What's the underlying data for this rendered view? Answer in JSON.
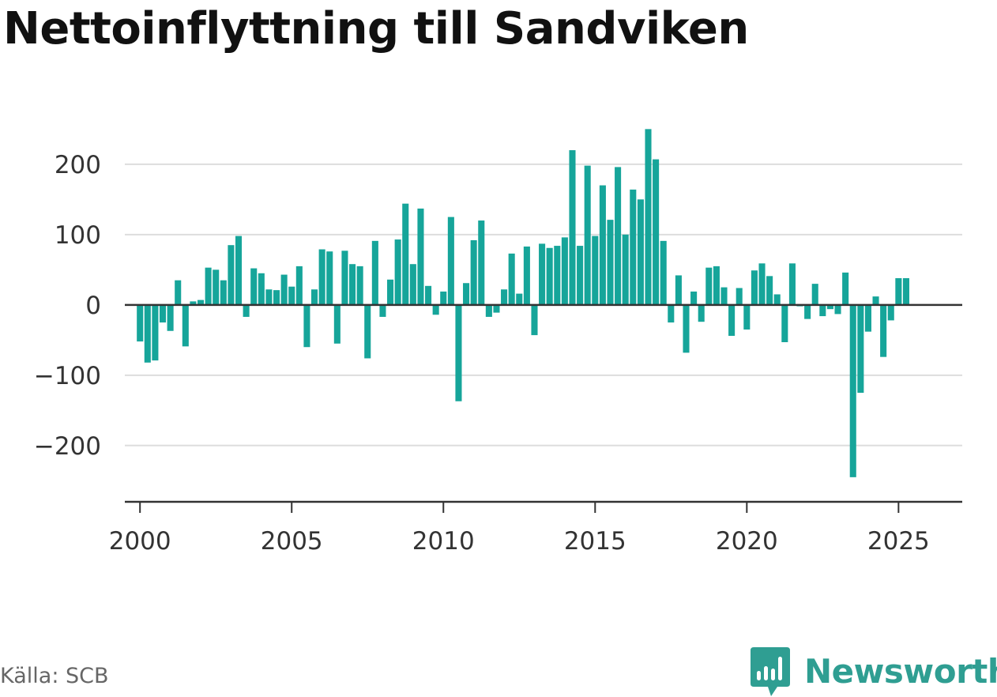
{
  "title": "Nettoinflyttning till Sandviken",
  "source": "Källa: SCB",
  "brand": {
    "name": "Newsworthy",
    "icon": "newsworthy-logo-icon",
    "color": "#2f9e92"
  },
  "colors": {
    "bar": "#16a59a",
    "grid": "#dddddd",
    "zero_line": "#333333",
    "axis": "#333333"
  },
  "chart_data": {
    "type": "bar",
    "title": "Nettoinflyttning till Sandviken",
    "xlabel": "",
    "ylabel": "",
    "grid": true,
    "x_ticks": [
      "2000",
      "2005",
      "2010",
      "2015",
      "2020",
      "2025"
    ],
    "y_ticks": [
      200,
      100,
      0,
      -100,
      -200
    ],
    "y_tick_labels": [
      "200",
      "100",
      "0",
      "−100",
      "−200"
    ],
    "ylim": [
      -280,
      265
    ],
    "xlim": [
      1999.5,
      2027.1
    ],
    "frequency": "quarterly",
    "first_period": "2000 Q1",
    "values": [
      -52,
      -82,
      -79,
      -25,
      -37,
      35,
      -59,
      5,
      7,
      53,
      50,
      35,
      85,
      98,
      -17,
      52,
      45,
      22,
      21,
      43,
      26,
      55,
      -60,
      22,
      79,
      76,
      -55,
      77,
      58,
      55,
      -76,
      91,
      -17,
      36,
      93,
      144,
      58,
      137,
      27,
      -14,
      19,
      125,
      -137,
      31,
      92,
      120,
      -17,
      -11,
      22,
      73,
      16,
      83,
      -43,
      87,
      81,
      84,
      96,
      220,
      84,
      198,
      98,
      170,
      121,
      196,
      100,
      164,
      150,
      250,
      207,
      91,
      -25,
      42,
      -68,
      19,
      -24,
      53,
      55,
      25,
      -44,
      24,
      -35,
      49,
      59,
      41,
      15,
      -53,
      59,
      -2,
      -20,
      30,
      -16,
      -6,
      -13,
      46,
      -245,
      -125,
      -38,
      12,
      -74,
      -22,
      38,
      38
    ]
  }
}
